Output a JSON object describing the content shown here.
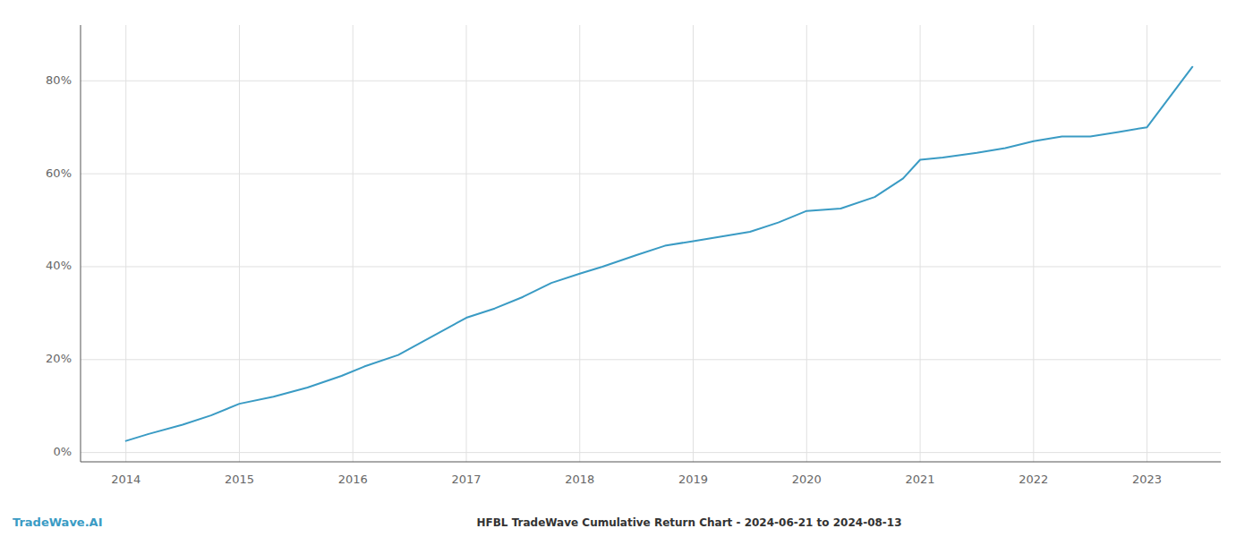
{
  "chart_data": {
    "type": "line",
    "title": "HFBL TradeWave Cumulative Return Chart - 2024-06-21 to 2024-08-13",
    "annotations": [
      "TradeWave.AI"
    ],
    "color": "#3a9bc4",
    "x": [
      2014.0,
      2014.2,
      2014.5,
      2014.75,
      2015.0,
      2015.3,
      2015.6,
      2015.9,
      2016.1,
      2016.4,
      2016.7,
      2017.0,
      2017.25,
      2017.5,
      2017.75,
      2018.0,
      2018.2,
      2018.5,
      2018.75,
      2019.0,
      2019.25,
      2019.5,
      2019.75,
      2020.0,
      2020.3,
      2020.6,
      2020.85,
      2021.0,
      2021.2,
      2021.5,
      2021.75,
      2022.0,
      2022.25,
      2022.5,
      2022.75,
      2023.0,
      2023.4
    ],
    "values": [
      2.5,
      4.0,
      6.0,
      8.0,
      10.5,
      12.0,
      14.0,
      16.5,
      18.5,
      21.0,
      25.0,
      29.0,
      31.0,
      33.5,
      36.5,
      38.5,
      40.0,
      42.5,
      44.5,
      45.5,
      46.5,
      47.5,
      49.5,
      52.0,
      52.5,
      55.0,
      59.0,
      63.0,
      63.5,
      64.5,
      65.5,
      67.0,
      68.0,
      68.0,
      69.0,
      70.0,
      83.0
    ],
    "xlim": [
      2013.6,
      2023.65
    ],
    "ylim": [
      -2,
      92
    ],
    "xticks": [
      2014,
      2015,
      2016,
      2017,
      2018,
      2019,
      2020,
      2021,
      2022,
      2023
    ],
    "yticks": [
      {
        "value": 0,
        "label": "0%"
      },
      {
        "value": 20,
        "label": "20%"
      },
      {
        "value": 40,
        "label": "40%"
      },
      {
        "value": 60,
        "label": "60%"
      },
      {
        "value": 80,
        "label": "80%"
      }
    ],
    "grid": true
  }
}
